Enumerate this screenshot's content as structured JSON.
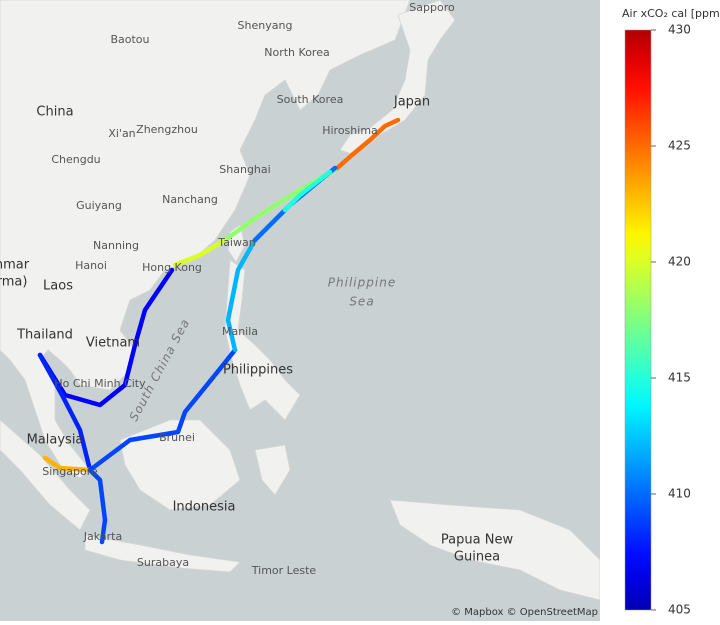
{
  "map": {
    "places": [
      "Sapporo",
      "Shenyang",
      "Baotou",
      "North Korea",
      "South Korea",
      "Japan",
      "China",
      "Hiroshima",
      "Xi'an",
      "Zhengzhou",
      "Chengdu",
      "Shanghai",
      "Nanchang",
      "Guiyang",
      "Taiwan",
      "Nanning",
      "Hanoi",
      "Hong Kong",
      "nmar",
      "rma)",
      "Laos",
      "Thailand",
      "Manila",
      "Vietnam",
      "Philippines",
      "Ho Chi Minh City",
      "Brunei",
      "Malaysia",
      "Singapore",
      "Indonesia",
      "Jakarta",
      "Surabaya",
      "Timor Leste",
      "Papua New",
      "Guinea"
    ],
    "seas": [
      "Philippine",
      "Sea",
      "South China Sea"
    ],
    "attribution": "© Mapbox © OpenStreetMap"
  },
  "track": {
    "values": [
      425,
      418,
      420,
      407,
      408,
      423,
      409,
      409,
      412,
      410,
      415
    ]
  },
  "colorbar": {
    "title": "Air xCO₂ cal [ppm]",
    "lim": [
      405,
      430
    ],
    "ticks": [
      405,
      410,
      415,
      420,
      425,
      430
    ]
  }
}
